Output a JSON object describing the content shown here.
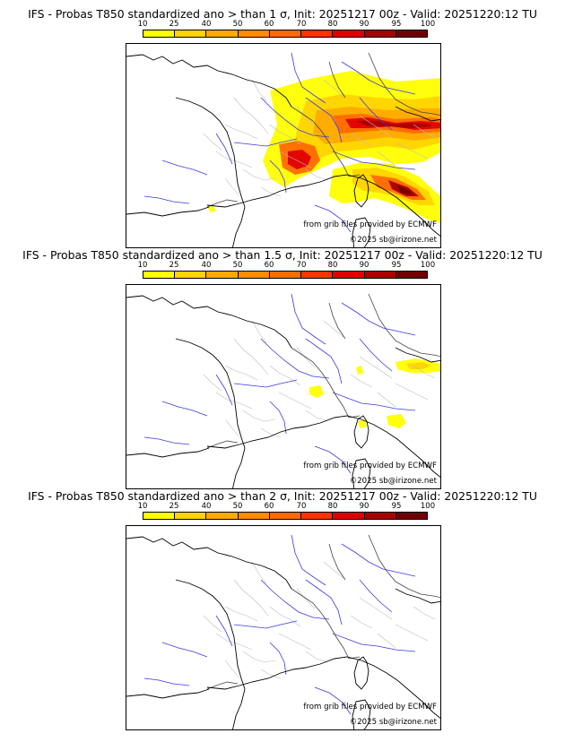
{
  "panels": [
    {
      "title": "IFS - Probas T850  standardized ano > than 1 σ, Init: 20251217 00z - Valid: 20251220:12 TU",
      "has_copyright": true
    },
    {
      "title": "IFS - Probas T850  standardized ano > than 1.5 σ, Init: 20251217 00z - Valid: 20251220:12 TU",
      "has_copyright": true
    },
    {
      "title": "IFS - Probas T850  standardized ano > than 2 σ, Init: 20251217 00z - Valid: 20251220:12 TU",
      "has_copyright": true
    }
  ],
  "colorbar": {
    "ticks": [
      "10",
      "25",
      "40",
      "50",
      "60",
      "70",
      "80",
      "90",
      "95",
      "100"
    ],
    "colors": [
      "#ffff00",
      "#ffd400",
      "#ffaa00",
      "#ff8c00",
      "#ff6a00",
      "#ff3300",
      "#e00000",
      "#a80000",
      "#700000"
    ]
  },
  "credits": {
    "source": "from grib files provided by ECMWF",
    "copyright": "©2025 sb@irizone.net"
  },
  "legend_symbol": "σ"
}
